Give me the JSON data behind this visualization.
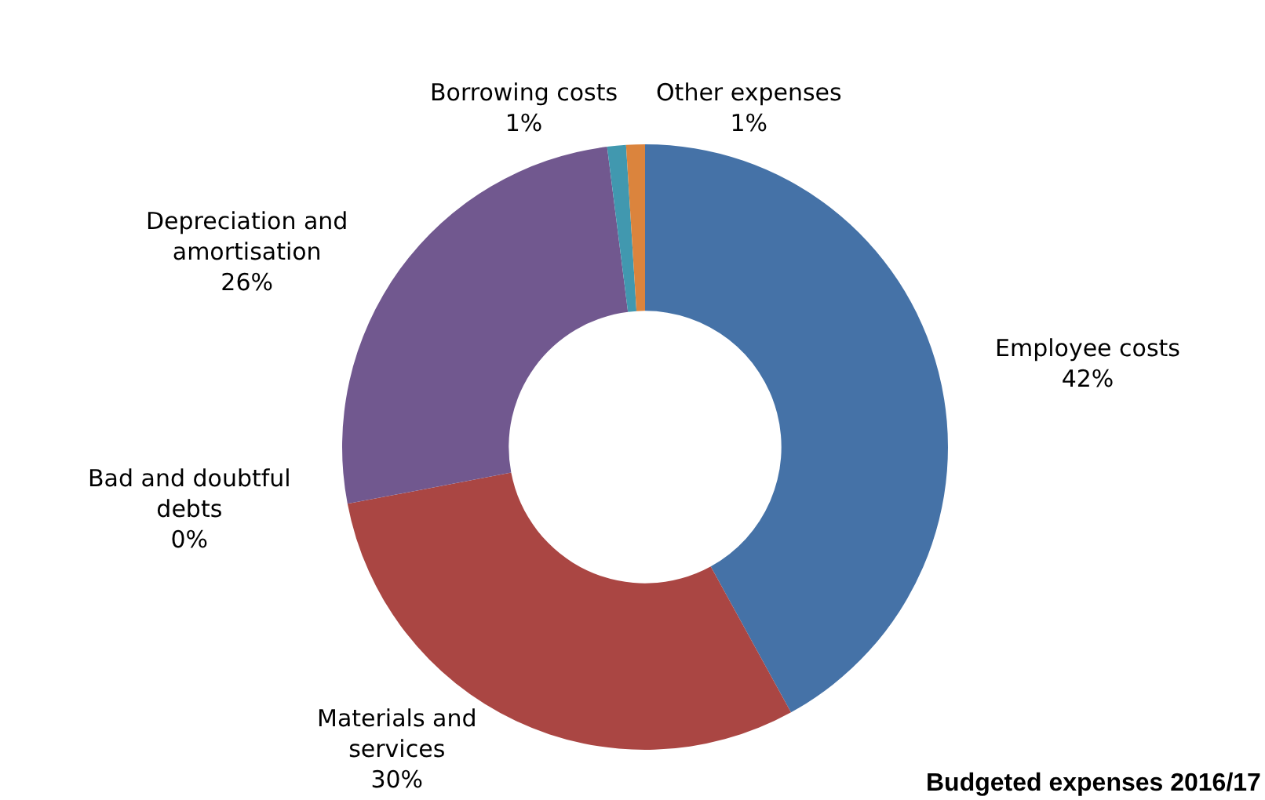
{
  "chart_data": {
    "type": "donut",
    "title": "Budgeted expenses 2016/17",
    "categories": [
      "Employee costs",
      "Materials and services",
      "Bad and doubtful debts",
      "Depreciation and amortisation",
      "Borrowing costs",
      "Other expenses"
    ],
    "values": [
      42,
      30,
      0,
      26,
      1,
      1
    ],
    "value_labels": [
      "42%",
      "30%",
      "0%",
      "26%",
      "1%",
      "1%"
    ],
    "colors": [
      "#4572a7",
      "#aa4643",
      "#89a54e",
      "#71588f",
      "#4198af",
      "#db843d"
    ],
    "legend": false
  }
}
